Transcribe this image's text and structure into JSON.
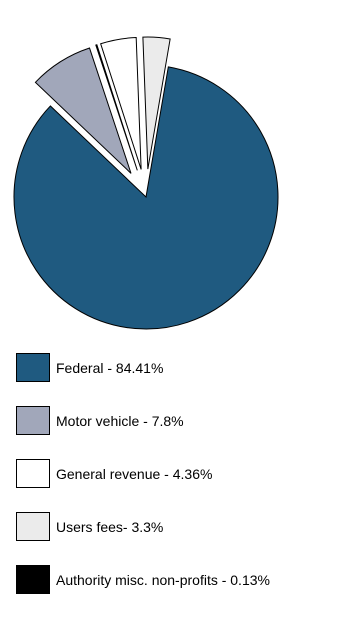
{
  "chart_data": {
    "type": "pie",
    "title": "",
    "legend_position": "bottom",
    "slices": [
      {
        "label": "Federal",
        "value": 84.41,
        "legend_text": "Federal - 84.41%",
        "color": "#1f5a80",
        "exploded": false
      },
      {
        "label": "Motor vehicle",
        "value": 7.8,
        "legend_text": "Motor vehicle - 7.8%",
        "color": "#a1a7ba",
        "exploded": true
      },
      {
        "label": "General revenue",
        "value": 4.36,
        "legend_text": "General revenue - 4.36%",
        "color": "#ffffff",
        "exploded": true
      },
      {
        "label": "Users fees",
        "value": 3.3,
        "legend_text": "Users fees- 3.3%",
        "color": "#ebebeb",
        "exploded": true
      },
      {
        "label": "Authority misc. non-profits",
        "value": 0.13,
        "legend_text": "Authority misc. non-profits - 0.13%",
        "color": "#000000",
        "exploded": true
      }
    ]
  }
}
